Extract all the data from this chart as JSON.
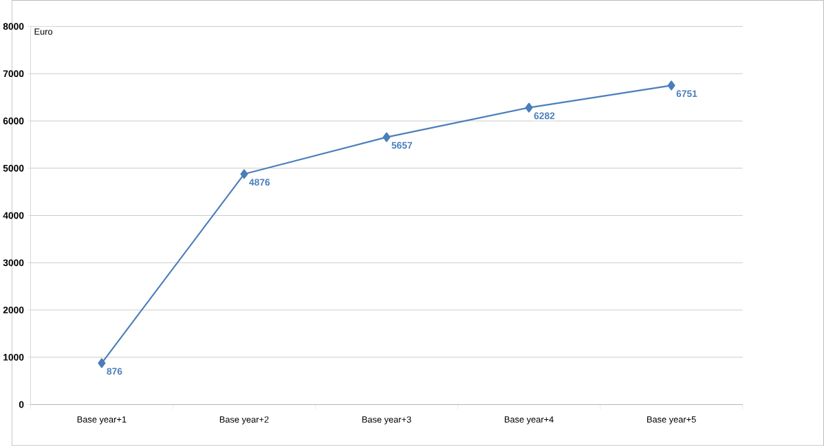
{
  "chart_data": {
    "type": "line",
    "ylabel": "Euro",
    "categories": [
      "Base year+1",
      "Base year+2",
      "Base year+3",
      "Base year+4",
      "Base year+5"
    ],
    "values": [
      876,
      4876,
      5657,
      6282,
      6751
    ],
    "color": "#4a7ebb",
    "ylim": [
      0,
      8000
    ],
    "yticks": [
      0,
      1000,
      2000,
      3000,
      4000,
      5000,
      6000,
      7000,
      8000
    ],
    "grid": "y",
    "marker": "diamond",
    "line_style": "solid",
    "data_labels": true
  }
}
